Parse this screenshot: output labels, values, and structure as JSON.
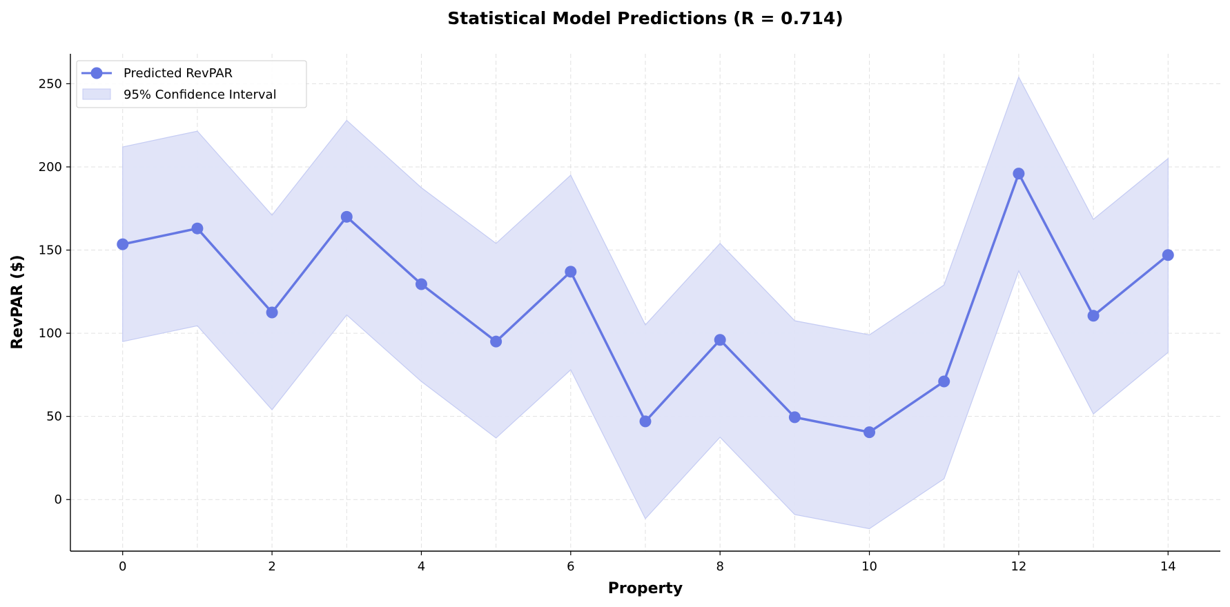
{
  "chart_data": {
    "type": "line",
    "title": "Statistical Model Predictions (R = 0.714)",
    "xlabel": "Property",
    "ylabel": "RevPAR ($)",
    "xlim": [
      -0.7,
      14.7
    ],
    "ylim": [
      -31,
      268
    ],
    "x_ticks": [
      0,
      2,
      4,
      6,
      8,
      10,
      12,
      14
    ],
    "y_ticks": [
      0,
      50,
      100,
      150,
      200,
      250
    ],
    "grid": true,
    "legend_position": "top-left",
    "colors": {
      "line": "#6577e3",
      "band_fill": "#dfe3f8",
      "band_edge": "#c4cbf3"
    },
    "series": [
      {
        "name": "Predicted RevPAR",
        "x": [
          0,
          1,
          2,
          3,
          4,
          5,
          6,
          7,
          8,
          9,
          10,
          11,
          12,
          13,
          14
        ],
        "values": [
          153.5,
          163,
          112.5,
          170,
          129.5,
          95,
          137,
          47,
          96,
          49.5,
          40.5,
          71,
          196,
          110.5,
          147
        ]
      }
    ],
    "band": {
      "name": "95% Confidence Interval",
      "lower": [
        95,
        104.5,
        54,
        111,
        71,
        37,
        78,
        -11.5,
        37.5,
        -9,
        -17.5,
        12.5,
        137.5,
        51.5,
        88.5
      ],
      "upper": [
        212,
        221.5,
        171,
        228,
        187.5,
        154,
        195,
        105,
        154,
        107.5,
        99,
        129,
        254,
        168.5,
        205
      ]
    }
  }
}
